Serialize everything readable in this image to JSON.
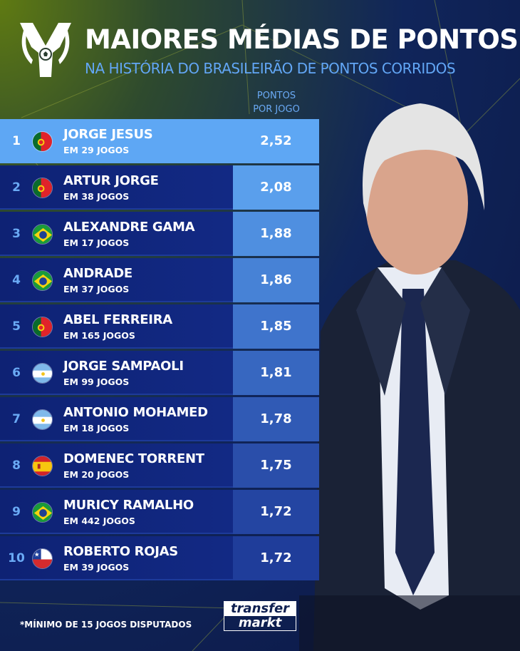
{
  "header": {
    "title": "MAIORES MÉDIAS DE PONTOS",
    "subtitle": "NA HISTÓRIA DO BRASILEIRÃO DE PONTOS CORRIDOS",
    "column_header_line1": "PONTOS",
    "column_header_line2": "POR JOGO"
  },
  "rows": [
    {
      "rank": "1",
      "flag": "portugal",
      "name": "JORGE JESUS",
      "games": "EM 29 JOGOS",
      "value": "2,52",
      "box_color": "#5ea7f4"
    },
    {
      "rank": "2",
      "flag": "portugal",
      "name": "ARTUR JORGE",
      "games": "EM 38 JOGOS",
      "value": "2,08",
      "box_color": "#5a9fec"
    },
    {
      "rank": "3",
      "flag": "brazil",
      "name": "ALEXANDRE GAMA",
      "games": "EM 17 JOGOS",
      "value": "1,88",
      "box_color": "#4f8fe0"
    },
    {
      "rank": "4",
      "flag": "brazil",
      "name": "ANDRADE",
      "games": "EM 37 JOGOS",
      "value": "1,86",
      "box_color": "#4782d6"
    },
    {
      "rank": "5",
      "flag": "portugal",
      "name": "ABEL FERREIRA",
      "games": "EM 165 JOGOS",
      "value": "1,85",
      "box_color": "#3f74cc"
    },
    {
      "rank": "6",
      "flag": "argentina",
      "name": "JORGE SAMPAOLI",
      "games": "EM 99 JOGOS",
      "value": "1,81",
      "box_color": "#3767c0"
    },
    {
      "rank": "7",
      "flag": "argentina",
      "name": "ANTONIO MOHAMED",
      "games": "EM 18 JOGOS",
      "value": "1,78",
      "box_color": "#305ab5"
    },
    {
      "rank": "8",
      "flag": "spain",
      "name": "DOMENEC TORRENT",
      "games": "EM 20 JOGOS",
      "value": "1,75",
      "box_color": "#2a4eaa"
    },
    {
      "rank": "9",
      "flag": "brazil",
      "name": "MURICY RAMALHO",
      "games": "EM 442 JOGOS",
      "value": "1,72",
      "box_color": "#2445a2"
    },
    {
      "rank": "10",
      "flag": "chile",
      "name": "ROBERTO ROJAS",
      "games": "EM 39 JOGOS",
      "value": "1,72",
      "box_color": "#1f3d9a"
    }
  ],
  "footer": {
    "footnote": "*MÍNIMO DE 15 JOGOS DISPUTADOS",
    "brand_line1": "transfer",
    "brand_line2": "markt"
  },
  "colors": {
    "accent": "#5ea7f4",
    "background": "#0c1a4a",
    "subtitle": "#62a6f5"
  }
}
